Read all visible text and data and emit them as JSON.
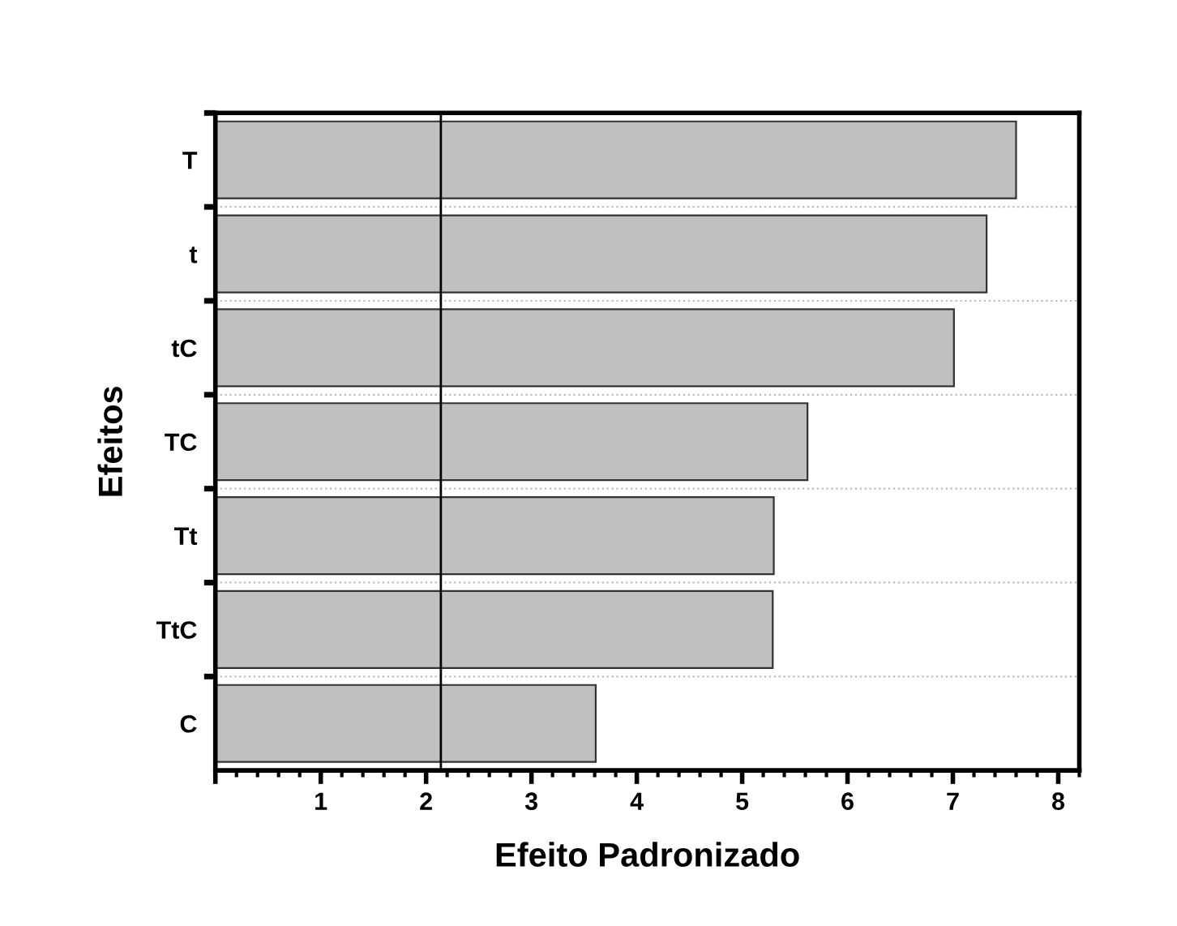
{
  "chart_data": {
    "type": "bar",
    "orientation": "horizontal",
    "xlabel": "Efeito Padronizado",
    "ylabel": "Efeitos",
    "categories": [
      "T",
      "t",
      "tC",
      "TC",
      "Tt",
      "TtC",
      "C"
    ],
    "values": [
      7.6,
      7.32,
      7.01,
      5.62,
      5.3,
      5.29,
      3.61
    ],
    "color": "#c0c0c0",
    "xlim": [
      0,
      8.2
    ],
    "xticks": [
      {
        "value": 0,
        "label": null
      },
      1,
      2,
      3,
      4,
      5,
      6,
      7,
      8
    ],
    "ref_lines": [
      {
        "axis": "x",
        "value": 2.14,
        "color": "#000000",
        "line_style": "solid"
      }
    ],
    "grid": "y",
    "legend": false
  }
}
